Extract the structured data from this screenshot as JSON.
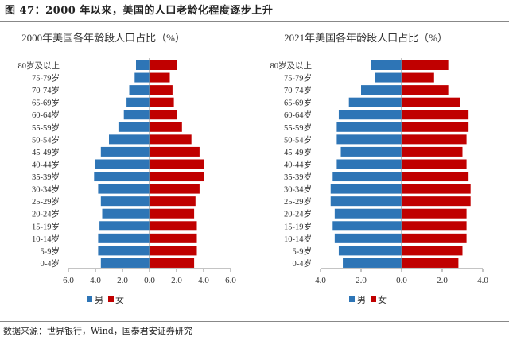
{
  "figure_title": "图 47：2000 年以来，美国的人口老龄化程度逐步上升",
  "source": "数据来源：世界银行，Wind，国泰君安证券研究",
  "colors": {
    "male": "#2E75B6",
    "female": "#C00000"
  },
  "chart_data": [
    {
      "type": "bar",
      "orientation": "horizontal-pyramid",
      "title": "2000年美国各年龄段人口占比（%）",
      "categories": [
        "80岁及以上",
        "75-79岁",
        "70-74岁",
        "65-69岁",
        "60-64岁",
        "55-59岁",
        "50-54岁",
        "45-49岁",
        "40-44岁",
        "35-39岁",
        "30-34岁",
        "25-29岁",
        "20-24岁",
        "15-19岁",
        "10-14岁",
        "5-9岁",
        "0-4岁"
      ],
      "series": [
        {
          "name": "男",
          "values": [
            1.0,
            1.1,
            1.5,
            1.7,
            1.9,
            2.3,
            3.0,
            3.6,
            4.0,
            4.1,
            3.8,
            3.6,
            3.5,
            3.7,
            3.8,
            3.8,
            3.6
          ]
        },
        {
          "name": "女",
          "values": [
            2.0,
            1.5,
            1.7,
            1.8,
            2.0,
            2.4,
            3.1,
            3.7,
            4.0,
            4.0,
            3.7,
            3.4,
            3.3,
            3.5,
            3.5,
            3.5,
            3.3
          ]
        }
      ],
      "xlim": [
        -6,
        6
      ],
      "ticks": [
        "6.0",
        "4.0",
        "2.0",
        "0.0",
        "2.0",
        "4.0",
        "6.0"
      ],
      "tick_values": [
        -6,
        -4,
        -2,
        0,
        2,
        4,
        6
      ],
      "legend": "bottom"
    },
    {
      "type": "bar",
      "orientation": "horizontal-pyramid",
      "title": "2021年美国各年龄段人口占比（%）",
      "categories": [
        "80岁及以上",
        "75-79岁",
        "70-74岁",
        "65-69岁",
        "60-64岁",
        "55-59岁",
        "50-54岁",
        "45-49岁",
        "40-44岁",
        "35-39岁",
        "30-34岁",
        "25-29岁",
        "20-24岁",
        "15-19岁",
        "10-14岁",
        "5-9岁",
        "0-4岁"
      ],
      "series": [
        {
          "name": "男",
          "values": [
            1.5,
            1.3,
            2.0,
            2.6,
            3.1,
            3.2,
            3.2,
            3.0,
            3.2,
            3.4,
            3.5,
            3.5,
            3.3,
            3.4,
            3.3,
            3.1,
            2.9
          ]
        },
        {
          "name": "女",
          "values": [
            2.3,
            1.6,
            2.3,
            2.9,
            3.3,
            3.3,
            3.2,
            3.0,
            3.2,
            3.3,
            3.4,
            3.4,
            3.2,
            3.2,
            3.2,
            3.0,
            2.8
          ]
        }
      ],
      "xlim": [
        -4,
        4
      ],
      "ticks": [
        "4.0",
        "2.0",
        "0.0",
        "2.0",
        "4.0"
      ],
      "tick_values": [
        -4,
        -2,
        0,
        2,
        4
      ],
      "legend": "bottom"
    }
  ]
}
